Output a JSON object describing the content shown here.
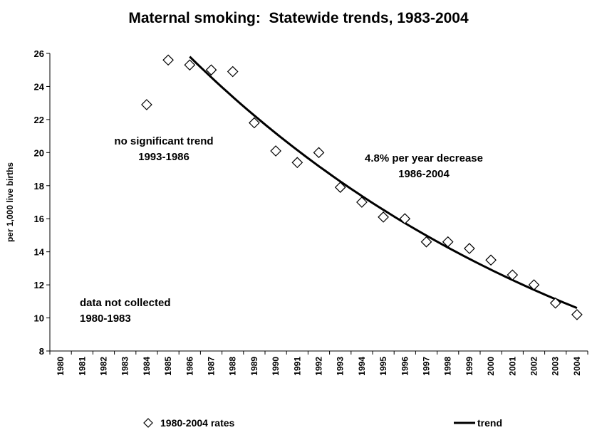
{
  "chart_data": {
    "type": "scatter",
    "title": "Maternal smoking:  Statewide trends, 1983-2004",
    "xlabel": "",
    "ylabel": "per 1,000 live births",
    "ylim": [
      8,
      26
    ],
    "yticks": [
      8,
      10,
      12,
      14,
      16,
      18,
      20,
      22,
      24,
      26
    ],
    "x_categories": [
      "1980",
      "1981",
      "1982",
      "1983",
      "1984",
      "1985",
      "1986",
      "1987",
      "1988",
      "1989",
      "1990",
      "1991",
      "1992",
      "1993",
      "1994",
      "1995",
      "1996",
      "1997",
      "1998",
      "1999",
      "2000",
      "2001",
      "2002",
      "2003",
      "2004"
    ],
    "grid": false,
    "series": [
      {
        "name": "1980-2004 rates",
        "marker": "diamond",
        "points": [
          {
            "x": "1984",
            "y": 22.9
          },
          {
            "x": "1985",
            "y": 25.6
          },
          {
            "x": "1986",
            "y": 25.3
          },
          {
            "x": "1987",
            "y": 25.0
          },
          {
            "x": "1988",
            "y": 24.9
          },
          {
            "x": "1989",
            "y": 21.8
          },
          {
            "x": "1990",
            "y": 20.1
          },
          {
            "x": "1991",
            "y": 19.4
          },
          {
            "x": "1992",
            "y": 20.0
          },
          {
            "x": "1993",
            "y": 17.9
          },
          {
            "x": "1994",
            "y": 17.0
          },
          {
            "x": "1995",
            "y": 16.1
          },
          {
            "x": "1996",
            "y": 16.0
          },
          {
            "x": "1997",
            "y": 14.6
          },
          {
            "x": "1998",
            "y": 14.6
          },
          {
            "x": "1999",
            "y": 14.2
          },
          {
            "x": "2000",
            "y": 13.5
          },
          {
            "x": "2001",
            "y": 12.6
          },
          {
            "x": "2002",
            "y": 12.0
          },
          {
            "x": "2003",
            "y": 10.9
          },
          {
            "x": "2004",
            "y": 10.2
          }
        ]
      },
      {
        "name": "trend",
        "type": "line",
        "from": "1986",
        "to": "2004",
        "start_value": 25.8,
        "end_value": 10.6
      }
    ],
    "annotations": [
      {
        "lines": [
          "no significant trend",
          "1993-1986"
        ],
        "align": "center"
      },
      {
        "lines": [
          "4.8% per year decrease",
          "1986-2004"
        ],
        "align": "center"
      },
      {
        "lines": [
          "data not collected",
          "1980-1983"
        ],
        "align": "left"
      }
    ],
    "legend_position": "bottom"
  }
}
